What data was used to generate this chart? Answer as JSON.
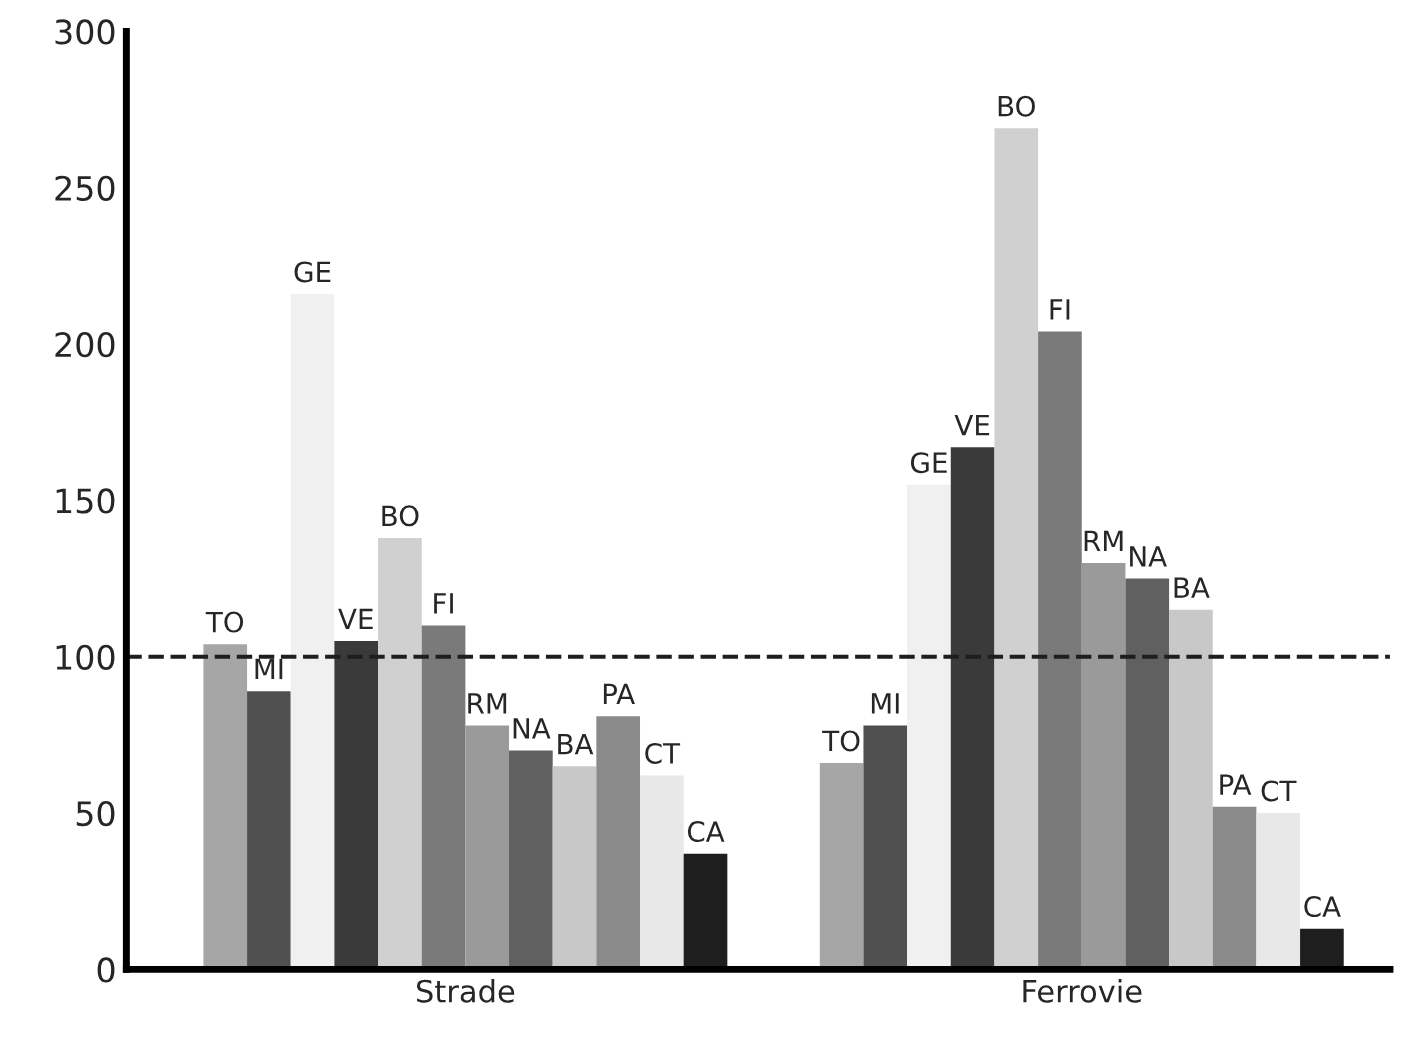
{
  "chart_data": {
    "type": "bar",
    "categories": [
      "Strade",
      "Ferrovie"
    ],
    "series": [
      {
        "name": "TO",
        "color": "#a6a6a6",
        "values": [
          104,
          66
        ]
      },
      {
        "name": "MI",
        "color": "#505050",
        "values": [
          89,
          78
        ]
      },
      {
        "name": "GE",
        "color": "#f0f0f0",
        "values": [
          216,
          155
        ]
      },
      {
        "name": "VE",
        "color": "#3a3a3a",
        "values": [
          105,
          167
        ]
      },
      {
        "name": "BO",
        "color": "#d0d0d0",
        "values": [
          138,
          269
        ]
      },
      {
        "name": "FI",
        "color": "#7a7a7a",
        "values": [
          110,
          204
        ]
      },
      {
        "name": "RM",
        "color": "#9a9a9a",
        "values": [
          78,
          130
        ]
      },
      {
        "name": "NA",
        "color": "#606060",
        "values": [
          70,
          125
        ]
      },
      {
        "name": "BA",
        "color": "#c8c8c8",
        "values": [
          65,
          115
        ]
      },
      {
        "name": "PA",
        "color": "#8a8a8a",
        "values": [
          81,
          52
        ]
      },
      {
        "name": "CT",
        "color": "#e8e8e8",
        "values": [
          62,
          50
        ]
      },
      {
        "name": "CA",
        "color": "#1e1e1e",
        "values": [
          37,
          13
        ]
      }
    ],
    "ylim": [
      0,
      300
    ],
    "yticks": [
      0,
      50,
      100,
      150,
      200,
      250,
      300
    ],
    "ref_lines": [
      {
        "axis": "y",
        "value": 100,
        "color": "#1e1e1e",
        "line_style": "dashed"
      }
    ],
    "grid": false,
    "legend": false
  }
}
